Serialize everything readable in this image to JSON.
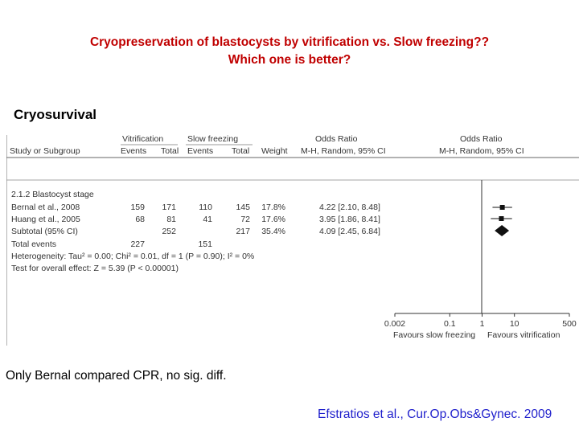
{
  "slide": {
    "title_line1": "Cryopreservation of blastocysts by vitrification vs. Slow freezing??",
    "title_line2": "Which one is better?",
    "section": "Cryosurvival",
    "note": "Only Bernal compared CPR, no sig. diff.",
    "reference": "Efstratios et al., Cur.Op.Obs&Gynec. 2009"
  },
  "forest": {
    "header": {
      "group1": "Vitrification",
      "group2": "Slow freezing",
      "or_left": "Odds Ratio",
      "or_right": "Odds Ratio",
      "study": "Study or Subgroup",
      "events1": "Events",
      "total1": "Total",
      "events2": "Events",
      "total2": "Total",
      "weight": "Weight",
      "method_left": "M-H, Random, 95% CI",
      "method_right": "M-H, Random, 95% CI"
    },
    "subgroup": "2.1.2 Blastocyst stage",
    "rows": [
      {
        "study": "Bernal et al., 2008",
        "events1": "159",
        "total1": "171",
        "events2": "110",
        "total2": "145",
        "weight": "17.8%",
        "ci": "4.22 [2.10, 8.48]"
      },
      {
        "study": "Huang et al., 2005",
        "events1": "68",
        "total1": "81",
        "events2": "41",
        "total2": "72",
        "weight": "17.6%",
        "ci": "3.95 [1.86, 8.41]"
      },
      {
        "study": "Subtotal (95% CI)",
        "events1": "",
        "total1": "252",
        "events2": "",
        "total2": "217",
        "weight": "35.4%",
        "ci": "4.09 [2.45, 6.84]"
      }
    ],
    "total_events_label": "Total events",
    "total_events1": "227",
    "total_events2": "151",
    "heterogeneity": "Heterogeneity: Tau² = 0.00; Chi² = 0.01, df = 1 (P = 0.90); I² = 0%",
    "overall_effect": "Test for overall effect: Z = 5.39 (P < 0.00001)",
    "axis_ticks": [
      "0.002",
      "0.1",
      "1",
      "10",
      "500"
    ],
    "favours_left": "Favours slow freezing",
    "favours_right": "Favours vitrification"
  },
  "chart_data": {
    "type": "scatter",
    "x_scale": "log",
    "xlim": [
      0.002,
      500
    ],
    "x_ticks": [
      0.002,
      0.1,
      1,
      10,
      500
    ],
    "studies": [
      {
        "name": "Bernal et al., 2008",
        "or": 4.22,
        "ci_low": 2.1,
        "ci_high": 8.48,
        "marker": "square"
      },
      {
        "name": "Huang et al., 2005",
        "or": 3.95,
        "ci_low": 1.86,
        "ci_high": 8.41,
        "marker": "square"
      },
      {
        "name": "Subtotal (95% CI)",
        "or": 4.09,
        "ci_low": 2.45,
        "ci_high": 6.84,
        "marker": "diamond"
      }
    ],
    "reference_line": 1
  }
}
